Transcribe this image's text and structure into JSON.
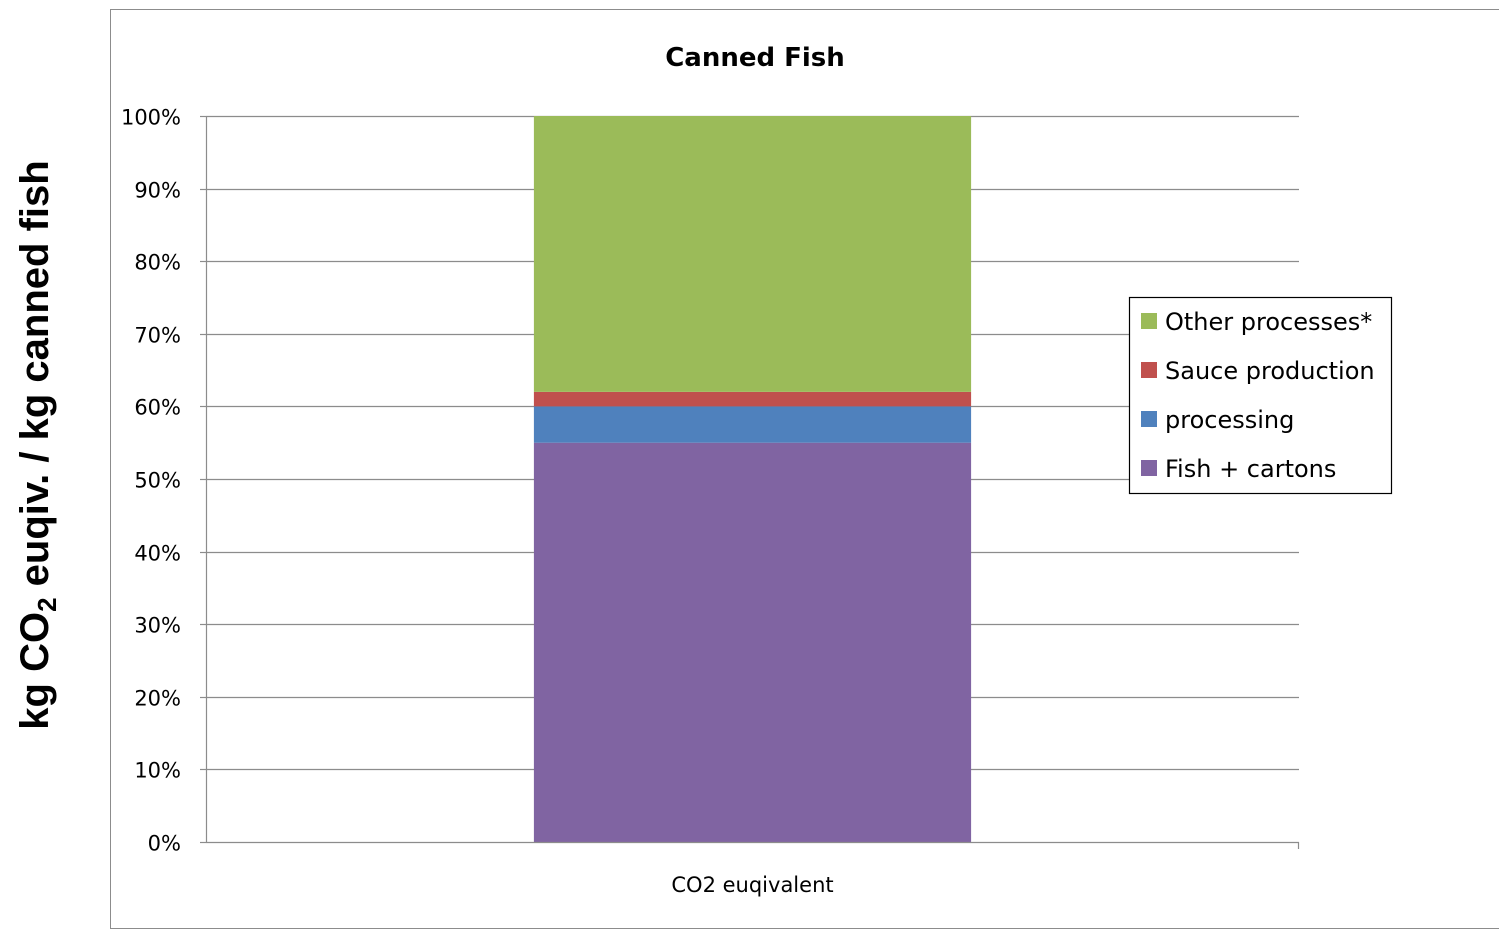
{
  "chart_data": {
    "type": "bar",
    "stacked": true,
    "percent_stacked": true,
    "title": "Canned Fish",
    "ylabel_parts": [
      "kg CO",
      "2",
      " euqiv. / kg canned fish"
    ],
    "categories": [
      "CO2 euqivalent"
    ],
    "series": [
      {
        "name": "Fish + cartons",
        "values": [
          55
        ],
        "color": "#8064a2"
      },
      {
        "name": "processing",
        "values": [
          5
        ],
        "color": "#4f81bd"
      },
      {
        "name": "Sauce production",
        "values": [
          2
        ],
        "color": "#c0504d"
      },
      {
        "name": "Other processes*",
        "values": [
          38
        ],
        "color": "#9bbb59"
      }
    ],
    "yticks": [
      "0%",
      "10%",
      "20%",
      "30%",
      "40%",
      "50%",
      "60%",
      "70%",
      "80%",
      "90%",
      "100%"
    ],
    "ylim": [
      0,
      100
    ],
    "grid": true,
    "legend_position": "right",
    "legend_order": [
      "Other processes*",
      "Sauce production",
      "processing",
      "Fish + cartons"
    ]
  }
}
